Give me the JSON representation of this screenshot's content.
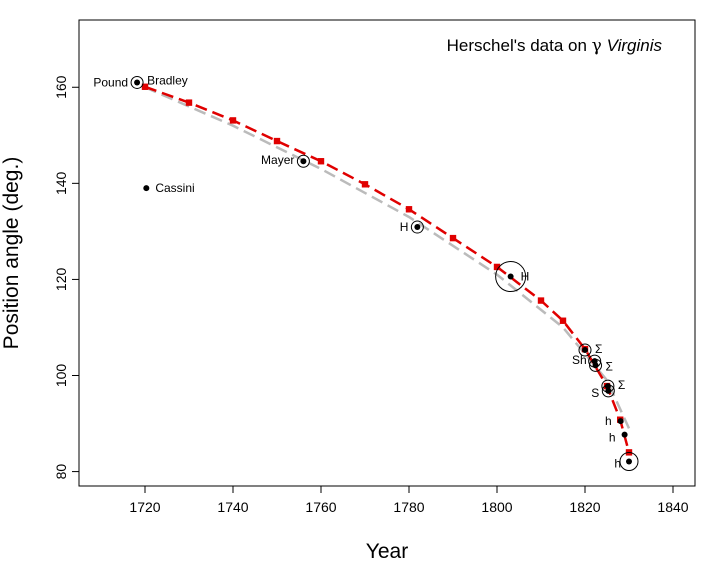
{
  "chart_data": {
    "type": "scatter",
    "title_prefix": "Herschel's data on ",
    "title_symbol": "γ",
    "title_star": "Virginis",
    "xlabel": "Year",
    "ylabel": "Position angle (deg.)",
    "xlim": [
      1705,
      1845
    ],
    "ylim": [
      77,
      174
    ],
    "x_ticks": [
      1720,
      1740,
      1760,
      1780,
      1800,
      1820,
      1840
    ],
    "y_ticks": [
      80,
      100,
      120,
      140,
      160
    ],
    "grid": false,
    "observations": [
      {
        "x": 1718.2,
        "y": 161.0,
        "label": "Pound",
        "circle_r": 6
      },
      {
        "x": 1720.3,
        "y": 139.0,
        "label": "Cassini",
        "circle_r": 0
      },
      {
        "x": 1756.0,
        "y": 144.6,
        "label": "Mayer",
        "circle_r": 6
      },
      {
        "x": 1781.9,
        "y": 130.9,
        "label": "H",
        "circle_r": 6
      },
      {
        "x": 1803.1,
        "y": 120.6,
        "label": "H",
        "circle_r": 15
      },
      {
        "x": 1820.0,
        "y": 105.3,
        "label": "Σ",
        "circle_r": 6
      },
      {
        "x": 1822.2,
        "y": 103.0,
        "label": "Sh",
        "circle_r": 6
      },
      {
        "x": 1822.4,
        "y": 102.1,
        "label": "Σ",
        "circle_r": 6
      },
      {
        "x": 1825.2,
        "y": 97.8,
        "label": "Σ",
        "circle_r": 6
      },
      {
        "x": 1825.3,
        "y": 96.8,
        "label": "S",
        "circle_r": 6
      },
      {
        "x": 1828.1,
        "y": 90.5,
        "label": "h",
        "circle_r": 0
      },
      {
        "x": 1829.0,
        "y": 87.7,
        "label": "h",
        "circle_r": 0
      },
      {
        "x": 1830.0,
        "y": 82.1,
        "label": "h",
        "circle_r": 9
      }
    ],
    "extra_label": {
      "text": "Bradley"
    },
    "series": [
      {
        "style": "dashed",
        "color": "#e00000",
        "x": [
          1720,
          1730,
          1740,
          1750,
          1760,
          1770,
          1780,
          1790,
          1800,
          1810,
          1815,
          1820,
          1825,
          1828,
          1830
        ],
        "y": [
          160.1,
          156.8,
          153.1,
          148.8,
          144.6,
          139.8,
          134.6,
          128.6,
          122.6,
          115.6,
          111.4,
          105.5,
          97.8,
          90.8,
          84.0
        ]
      },
      {
        "style": "dashed",
        "color": "#bbbbbb",
        "x": [
          1720,
          1740,
          1760,
          1780,
          1800,
          1815,
          1825,
          1830
        ],
        "y": [
          160.0,
          152.0,
          143.0,
          133.0,
          121.0,
          110.0,
          99.0,
          89.0
        ]
      }
    ]
  }
}
